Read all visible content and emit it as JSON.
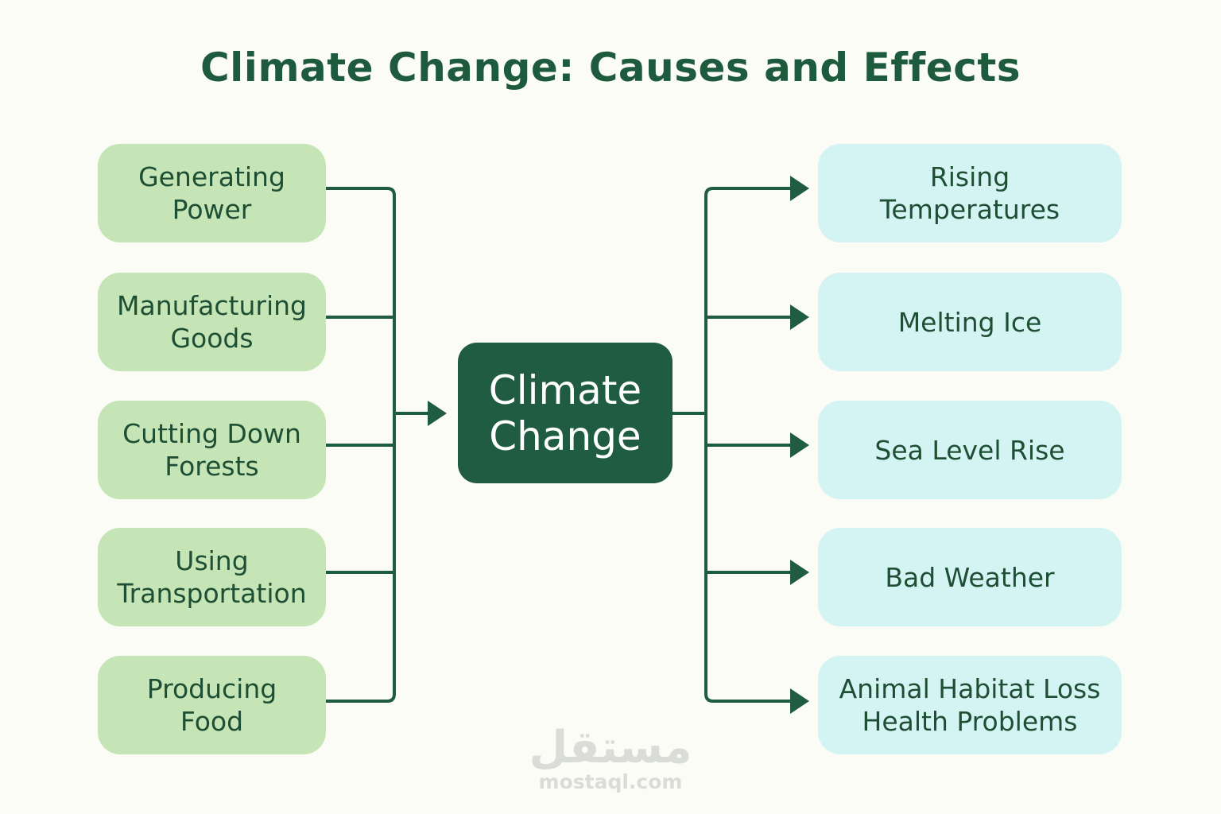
{
  "title": "Climate Change: Causes and Effects",
  "center": {
    "label": "Climate\nChange"
  },
  "causes": [
    {
      "label": "Generating\nPower"
    },
    {
      "label": "Manufacturing\nGoods"
    },
    {
      "label": "Cutting Down\nForests"
    },
    {
      "label": "Using\nTransportation"
    },
    {
      "label": "Producing\nFood"
    }
  ],
  "effects": [
    {
      "label": "Rising\nTemperatures"
    },
    {
      "label": "Melting Ice"
    },
    {
      "label": "Sea Level Rise"
    },
    {
      "label": "Bad Weather"
    },
    {
      "label": "Animal Habitat Loss\nHealth Problems"
    }
  ],
  "watermark": {
    "arabic": "مستقل",
    "url": "mostaql.com"
  },
  "colors": {
    "background": "#fcfcf6",
    "title": "#1e5a3c",
    "cause_fill": "#c5e5b6",
    "effect_fill": "#d4f4f4",
    "center_fill": "#1f5c41",
    "connector": "#1f5c41"
  }
}
